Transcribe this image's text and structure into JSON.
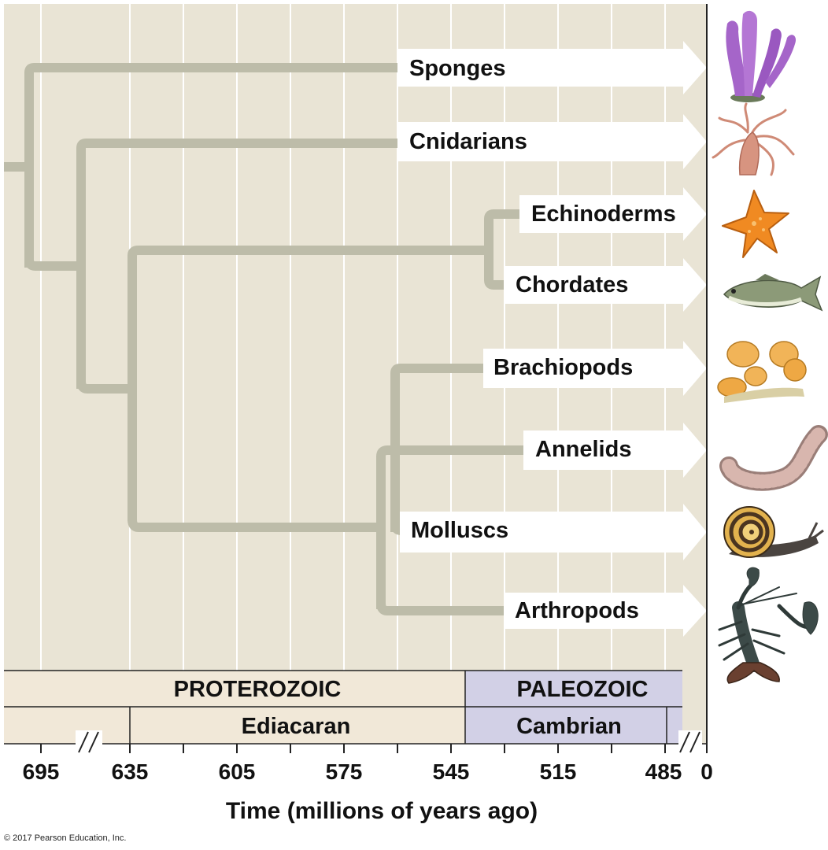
{
  "taxa": [
    {
      "name": "Sponges",
      "icon": "sponge-icon"
    },
    {
      "name": "Cnidarians",
      "icon": "jellyfish-icon"
    },
    {
      "name": "Echinoderms",
      "icon": "starfish-icon"
    },
    {
      "name": "Chordates",
      "icon": "fish-icon"
    },
    {
      "name": "Brachiopods",
      "icon": "brachiopod-icon"
    },
    {
      "name": "Annelids",
      "icon": "worm-icon"
    },
    {
      "name": "Molluscs",
      "icon": "snail-icon"
    },
    {
      "name": "Arthropods",
      "icon": "lobster-icon"
    }
  ],
  "eras": [
    {
      "name": "PROTEROZOIC",
      "color": "#f1e8d8"
    },
    {
      "name": "PALEOZOIC",
      "color": "#d2d0e6"
    }
  ],
  "periods": [
    {
      "name": "Ediacaran",
      "color": "#f1e8d8"
    },
    {
      "name": "Cambrian",
      "color": "#d2d0e6"
    }
  ],
  "axis": {
    "ticks": [
      "695",
      "635",
      "605",
      "575",
      "545",
      "515",
      "485",
      "0"
    ],
    "title": "Time (millions of years ago)"
  },
  "copyright": "© 2017 Pearson Education, Inc.",
  "colors": {
    "plot_bg": "#e9e4d5",
    "branch": "#bdbca9",
    "grid": "#ffffff"
  }
}
